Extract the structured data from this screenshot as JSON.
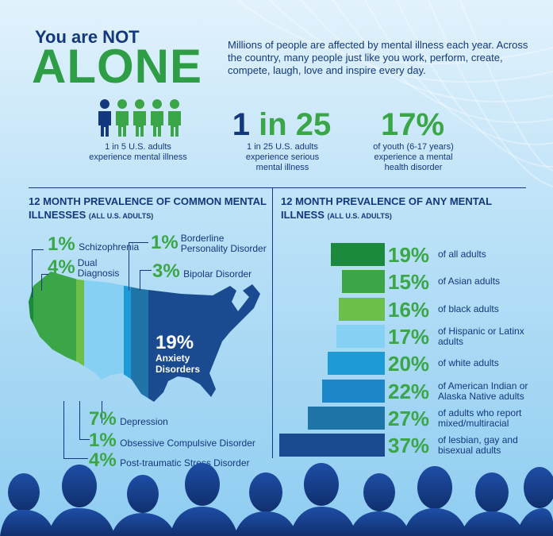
{
  "header": {
    "you_are": "You are NOT",
    "alone": "ALONE",
    "intro": "Millions of people are affected by mental illness each year. Across the country, many people just like you work, perform, create, compete, laugh, love and inspire every day."
  },
  "stats": [
    {
      "value": "",
      "caption": "1 in 5 U.S. adults experience mental illness",
      "icon": "people-icons"
    },
    {
      "value_a": "1",
      "value_b": " in 25",
      "caption": "1 in 25 U.S. adults experience serious mental illness"
    },
    {
      "value": "17%",
      "caption": "of youth (6-17 years) experience a mental health disorder"
    }
  ],
  "left_section": {
    "heading": "12 MONTH PREVALENCE OF COMMON MENTAL ILLNESSES",
    "heading_small": "(ALL U.S. ADULTS)",
    "items": [
      {
        "pct": "1%",
        "label": "Schizophrenia",
        "color": "#1b8a3c"
      },
      {
        "pct": "4%",
        "label": "Dual Diagnosis",
        "color": "#3aa648"
      },
      {
        "pct": "1%",
        "label": "Borderline Personality Disorder",
        "color": "#1e9ad6"
      },
      {
        "pct": "3%",
        "label": "Bipolar Disorder",
        "color": "#1f74a8"
      },
      {
        "pct": "19%",
        "label": "Anxiety Disorders",
        "color": "#1a4a8f"
      },
      {
        "pct": "7%",
        "label": "Depression",
        "color": "#86d0f3"
      },
      {
        "pct": "1%",
        "label": "Obsessive Compulsive Disorder",
        "color": "#6cc04a"
      },
      {
        "pct": "4%",
        "label": "Post-traumatic Stress Disorder",
        "color": "#1b8a3c"
      }
    ]
  },
  "right_section": {
    "heading": "12 MONTH PREVALENCE OF ANY MENTAL ILLNESS",
    "heading_small": "(ALL U.S. ADULTS)"
  },
  "chart_data": {
    "type": "bar",
    "title": "12 MONTH PREVALENCE OF ANY MENTAL ILLNESS (ALL U.S. ADULTS)",
    "categories": [
      "of all adults",
      "of Asian adults",
      "of black adults",
      "of Hispanic or Latinx adults",
      "of white adults",
      "of American Indian or Alaska Native adults",
      "of adults who report mixed/multiracial",
      "of lesbian, gay and bisexual adults"
    ],
    "values": [
      19,
      15,
      16,
      17,
      20,
      22,
      27,
      37
    ],
    "labels": [
      "19%",
      "15%",
      "16%",
      "17%",
      "20%",
      "22%",
      "27%",
      "37%"
    ],
    "colors": [
      "#1b8a3c",
      "#3aa648",
      "#6cc04a",
      "#86d0f3",
      "#1e9ad6",
      "#1c86c8",
      "#1f74a8",
      "#1a4a8f"
    ]
  }
}
